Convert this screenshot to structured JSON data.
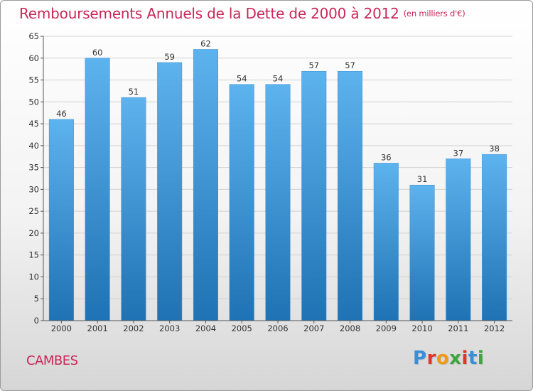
{
  "header": {
    "title": "Remboursements Annuels de la Dette de 2000 à 2012",
    "unit_note": "(en milliers d'€)"
  },
  "footer": {
    "location": "CAMBES",
    "brand": "Proxiti"
  },
  "colors": {
    "title": "#c8285a",
    "bar_top": "#5db3ee",
    "bar_bottom": "#1f72b3",
    "axis": "#555555"
  },
  "chart_data": {
    "type": "bar",
    "title": "Remboursements Annuels de la Dette de 2000 à 2012",
    "subtitle": "(en milliers d'€)",
    "categories": [
      "2000",
      "2001",
      "2002",
      "2003",
      "2004",
      "2005",
      "2006",
      "2007",
      "2008",
      "2009",
      "2010",
      "2011",
      "2012"
    ],
    "values": [
      46,
      60,
      51,
      59,
      62,
      54,
      54,
      57,
      57,
      36,
      31,
      37,
      38
    ],
    "ylim": [
      0,
      65
    ],
    "yticks": [
      0,
      5,
      10,
      15,
      20,
      25,
      30,
      35,
      40,
      45,
      50,
      55,
      60,
      65
    ],
    "grid": true,
    "xlabel": "",
    "ylabel": ""
  }
}
